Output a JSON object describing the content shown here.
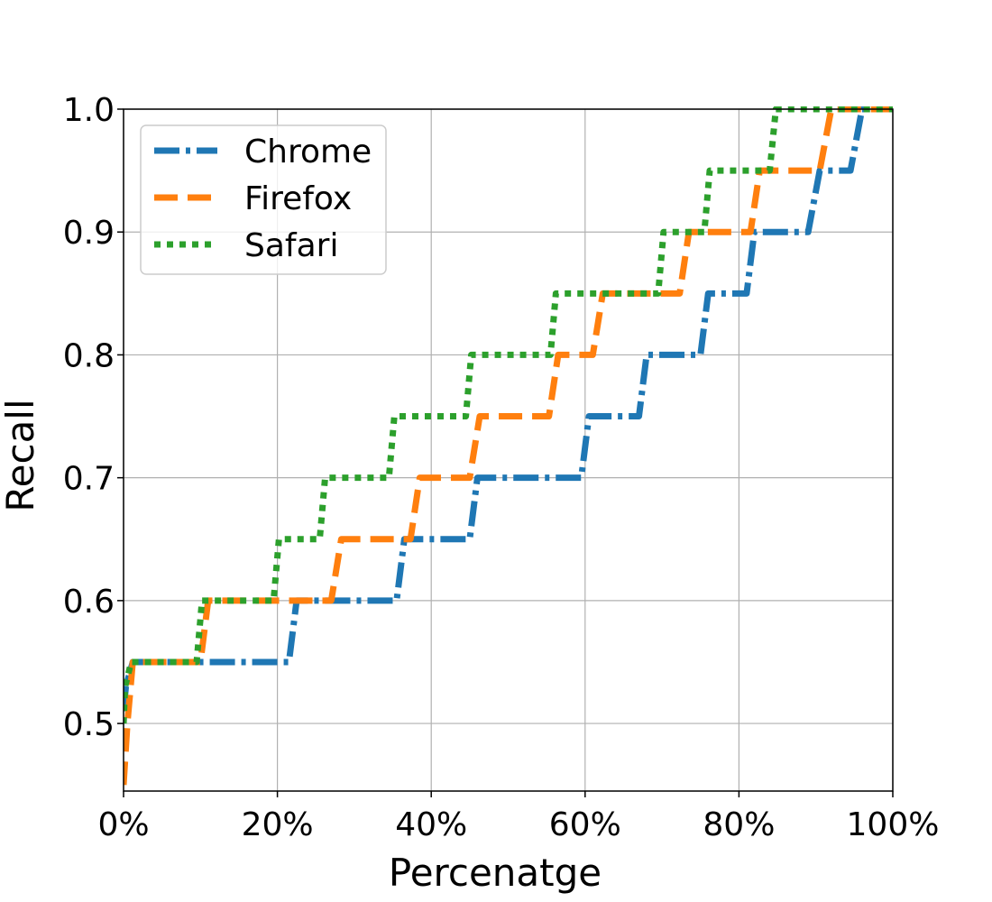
{
  "chart_data": {
    "type": "line",
    "xlabel": "Percenatge",
    "ylabel": "Recall",
    "xlim": [
      0,
      100
    ],
    "ylim": [
      0.445,
      1.0
    ],
    "x_ticks": [
      {
        "value": 0,
        "label": "0%"
      },
      {
        "value": 20,
        "label": "20%"
      },
      {
        "value": 40,
        "label": "40%"
      },
      {
        "value": 60,
        "label": "60%"
      },
      {
        "value": 80,
        "label": "80%"
      },
      {
        "value": 100,
        "label": "100%"
      }
    ],
    "y_ticks": [
      {
        "value": 0.5,
        "label": "0.5"
      },
      {
        "value": 0.6,
        "label": "0.6"
      },
      {
        "value": 0.7,
        "label": "0.7"
      },
      {
        "value": 0.8,
        "label": "0.8"
      },
      {
        "value": 0.9,
        "label": "0.9"
      },
      {
        "value": 1.0,
        "label": "1.0"
      }
    ],
    "grid": true,
    "legend_position": "top-left",
    "series": [
      {
        "name": "Chrome",
        "color": "#1f77b4",
        "style": "dashdot",
        "points": [
          [
            0,
            0.51
          ],
          [
            0.3,
            0.53
          ],
          [
            1.2,
            0.55
          ],
          [
            21.5,
            0.55
          ],
          [
            22.5,
            0.6
          ],
          [
            35.5,
            0.6
          ],
          [
            36.5,
            0.65
          ],
          [
            45,
            0.65
          ],
          [
            46,
            0.7
          ],
          [
            59.5,
            0.7
          ],
          [
            60.5,
            0.75
          ],
          [
            67,
            0.75
          ],
          [
            68,
            0.8
          ],
          [
            75,
            0.8
          ],
          [
            76,
            0.85
          ],
          [
            81,
            0.85
          ],
          [
            82,
            0.9
          ],
          [
            89,
            0.9
          ],
          [
            90.5,
            0.95
          ],
          [
            94.5,
            0.95
          ],
          [
            96,
            1.0
          ],
          [
            100,
            1.0
          ]
        ]
      },
      {
        "name": "Firefox",
        "color": "#ff7f0e",
        "style": "dashed",
        "points": [
          [
            0,
            0.45
          ],
          [
            0.5,
            0.5
          ],
          [
            1.2,
            0.55
          ],
          [
            10,
            0.55
          ],
          [
            11,
            0.6
          ],
          [
            27,
            0.6
          ],
          [
            28.3,
            0.65
          ],
          [
            37.3,
            0.65
          ],
          [
            38.5,
            0.7
          ],
          [
            45,
            0.7
          ],
          [
            46.3,
            0.75
          ],
          [
            55.3,
            0.75
          ],
          [
            56.5,
            0.8
          ],
          [
            61,
            0.8
          ],
          [
            62.3,
            0.85
          ],
          [
            72.3,
            0.85
          ],
          [
            73.5,
            0.9
          ],
          [
            81.5,
            0.9
          ],
          [
            82.7,
            0.95
          ],
          [
            90.5,
            0.95
          ],
          [
            92,
            1.0
          ],
          [
            100,
            1.0
          ]
        ]
      },
      {
        "name": "Safari",
        "color": "#2ca02c",
        "style": "dotted",
        "points": [
          [
            0,
            0.5
          ],
          [
            0.2,
            0.53
          ],
          [
            1,
            0.55
          ],
          [
            9.5,
            0.55
          ],
          [
            10.2,
            0.6
          ],
          [
            19.5,
            0.6
          ],
          [
            20.2,
            0.65
          ],
          [
            25.5,
            0.65
          ],
          [
            26.2,
            0.7
          ],
          [
            34.5,
            0.7
          ],
          [
            35.2,
            0.75
          ],
          [
            44.5,
            0.75
          ],
          [
            45.2,
            0.8
          ],
          [
            55.5,
            0.8
          ],
          [
            56.2,
            0.85
          ],
          [
            69.5,
            0.85
          ],
          [
            70.2,
            0.9
          ],
          [
            75.5,
            0.9
          ],
          [
            76.2,
            0.95
          ],
          [
            84,
            0.95
          ],
          [
            84.8,
            1.0
          ],
          [
            100,
            1.0
          ]
        ]
      }
    ]
  }
}
